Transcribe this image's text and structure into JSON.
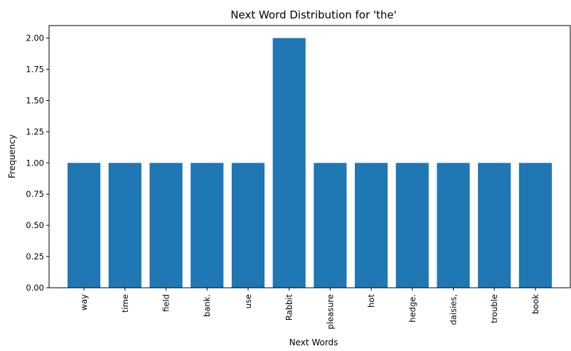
{
  "chart_data": {
    "type": "bar",
    "title": "Next Word Distribution for 'the'",
    "xlabel": "Next Words",
    "ylabel": "Frequency",
    "categories": [
      "way",
      "time",
      "field",
      "bank.",
      "use",
      "Rabbit",
      "pleasure",
      "hot",
      "hedge.",
      "daisies,",
      "trouble",
      "book"
    ],
    "values": [
      1,
      1,
      1,
      1,
      1,
      2,
      1,
      1,
      1,
      1,
      1,
      1
    ],
    "ylim": [
      0,
      2.1
    ],
    "yticks": [
      "0.00",
      "0.25",
      "0.50",
      "0.75",
      "1.00",
      "1.25",
      "1.50",
      "1.75",
      "2.00"
    ],
    "bar_color": "#1f77b4",
    "grid": false,
    "x_tick_rotation": "vertical"
  }
}
